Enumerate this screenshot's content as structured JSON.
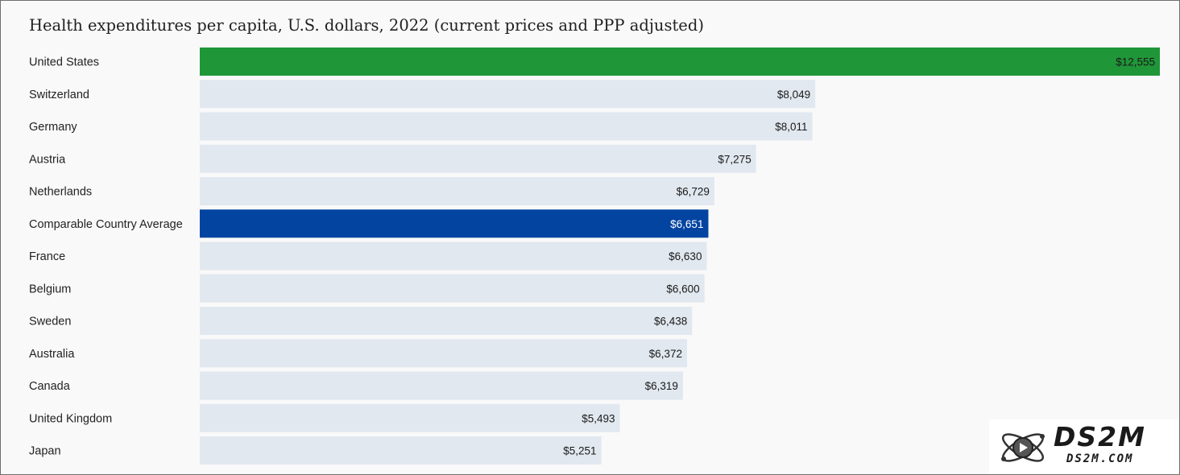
{
  "chart_data": {
    "type": "bar",
    "orientation": "horizontal",
    "title": "Health expenditures per capita, U.S. dollars, 2022 (current prices and PPP adjusted)",
    "categories": [
      "United States",
      "Switzerland",
      "Germany",
      "Austria",
      "Netherlands",
      "Comparable Country Average",
      "France",
      "Belgium",
      "Sweden",
      "Australia",
      "Canada",
      "United Kingdom",
      "Japan"
    ],
    "values": [
      12555,
      8049,
      8011,
      7275,
      6729,
      6651,
      6630,
      6600,
      6438,
      6372,
      6319,
      5493,
      5251
    ],
    "value_labels": [
      "$12,555",
      "$8,049",
      "$8,011",
      "$7,275",
      "$6,729",
      "$6,651",
      "$6,630",
      "$6,600",
      "$6,438",
      "$6,372",
      "$6,319",
      "$5,493",
      "$5,251"
    ],
    "bar_colors": [
      "#1f9638",
      "#e1e8ef",
      "#e1e8ef",
      "#e1e8ef",
      "#e1e8ef",
      "#0244a0",
      "#e1e8ef",
      "#e1e8ef",
      "#e1e8ef",
      "#e1e8ef",
      "#e1e8ef",
      "#e1e8ef",
      "#e1e8ef"
    ],
    "label_colors": [
      "#1a1a1a",
      "#1a1a1a",
      "#1a1a1a",
      "#1a1a1a",
      "#1a1a1a",
      "#ffffff",
      "#1a1a1a",
      "#1a1a1a",
      "#1a1a1a",
      "#1a1a1a",
      "#1a1a1a",
      "#1a1a1a",
      "#1a1a1a"
    ],
    "xlim": [
      0,
      12555
    ],
    "grid": false,
    "legend": "none"
  },
  "watermark": {
    "text": "DS2M",
    "subtext": "DS2M.COM"
  }
}
